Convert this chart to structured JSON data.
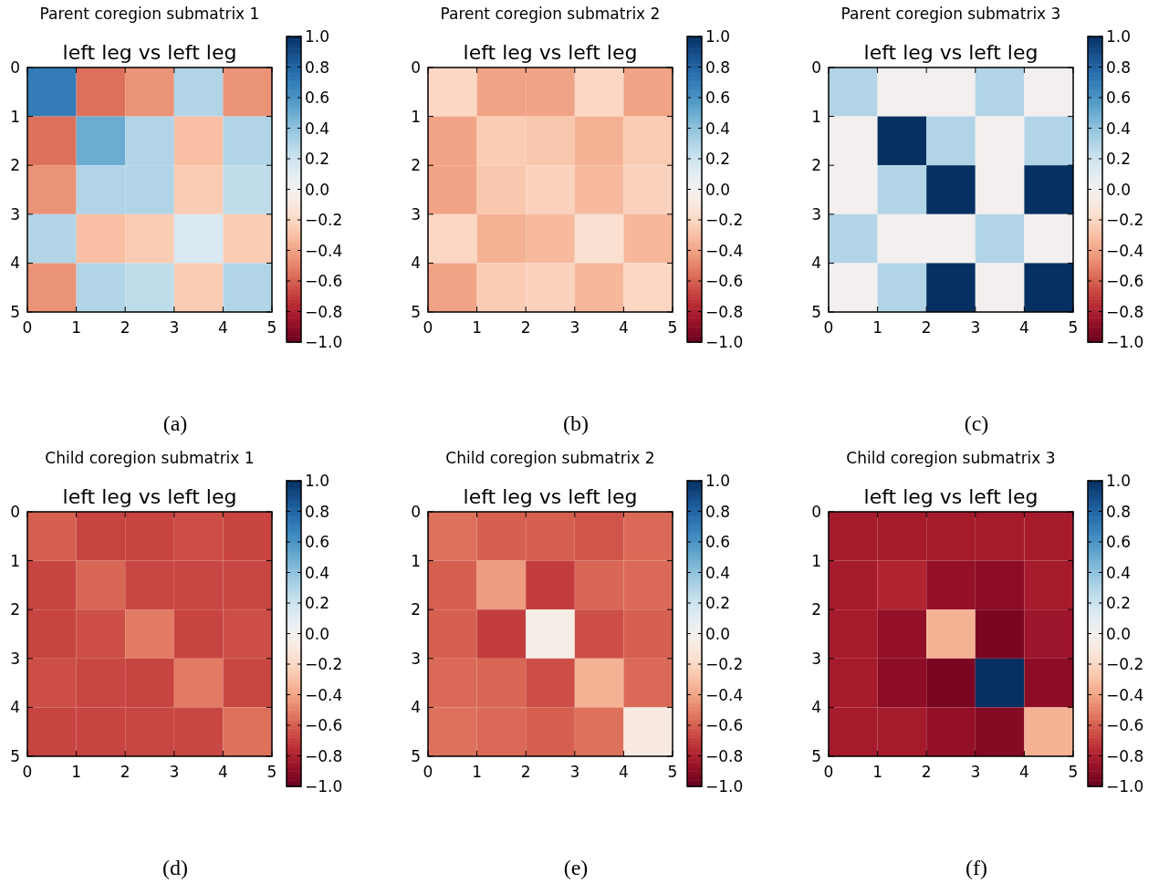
{
  "chart_data": [
    {
      "type": "heatmap",
      "title": "Parent coregion submatrix 1",
      "subtitle": "left leg vs left leg",
      "annotations": [
        "(a)"
      ],
      "xlim": [
        0,
        5
      ],
      "ylim": [
        5,
        0
      ],
      "xticks": [
        0,
        1,
        2,
        3,
        4,
        5
      ],
      "yticks": [
        0,
        1,
        2,
        3,
        4,
        5
      ],
      "clim": [
        -1,
        1
      ],
      "cticks": [
        {
          "value": -1,
          "label": "−1.0"
        },
        {
          "value": -0.8,
          "label": "−0.8"
        },
        {
          "value": -0.6,
          "label": "−0.6"
        },
        {
          "value": -0.4,
          "label": "−0.4"
        },
        {
          "value": -0.2,
          "label": "−0.2"
        },
        {
          "value": 0,
          "label": "0.0"
        },
        {
          "value": 0.2,
          "label": "0.2"
        },
        {
          "value": 0.4,
          "label": "0.4"
        },
        {
          "value": 0.6,
          "label": "0.6"
        },
        {
          "value": 0.8,
          "label": "0.8"
        },
        {
          "value": 1,
          "label": "1.0"
        }
      ],
      "cells": [
        [
          0.7,
          -0.55,
          -0.45,
          0.3,
          -0.45
        ],
        [
          -0.55,
          0.5,
          0.3,
          -0.3,
          0.3
        ],
        [
          -0.45,
          0.3,
          0.3,
          -0.25,
          0.25
        ],
        [
          0.3,
          -0.3,
          -0.25,
          0.15,
          -0.25
        ],
        [
          -0.45,
          0.3,
          0.25,
          -0.25,
          0.3
        ]
      ]
    },
    {
      "type": "heatmap",
      "title": "Parent coregion submatrix 2",
      "subtitle": "left leg vs left leg",
      "annotations": [
        "(b)"
      ],
      "xlim": [
        0,
        5
      ],
      "ylim": [
        5,
        0
      ],
      "xticks": [
        0,
        1,
        2,
        3,
        4,
        5
      ],
      "yticks": [
        0,
        1,
        2,
        3,
        4,
        5
      ],
      "clim": [
        -1,
        1
      ],
      "cticks": [
        {
          "value": -1,
          "label": "−1.0"
        },
        {
          "value": -0.8,
          "label": "−0.8"
        },
        {
          "value": -0.6,
          "label": "−0.6"
        },
        {
          "value": -0.4,
          "label": "−0.4"
        },
        {
          "value": -0.2,
          "label": "−0.2"
        },
        {
          "value": 0,
          "label": "0.0"
        },
        {
          "value": 0.2,
          "label": "0.2"
        },
        {
          "value": 0.4,
          "label": "0.4"
        },
        {
          "value": 0.6,
          "label": "0.6"
        },
        {
          "value": 0.8,
          "label": "0.8"
        },
        {
          "value": 1,
          "label": "1.0"
        }
      ],
      "cells": [
        [
          -0.2,
          -0.4,
          -0.4,
          -0.2,
          -0.4
        ],
        [
          -0.4,
          -0.25,
          -0.27,
          -0.35,
          -0.25
        ],
        [
          -0.4,
          -0.27,
          -0.22,
          -0.32,
          -0.22
        ],
        [
          -0.2,
          -0.35,
          -0.32,
          -0.15,
          -0.33
        ],
        [
          -0.4,
          -0.25,
          -0.22,
          -0.33,
          -0.2
        ]
      ]
    },
    {
      "type": "heatmap",
      "title": "Parent coregion submatrix 3",
      "subtitle": "left leg vs left leg",
      "annotations": [
        "(c)"
      ],
      "xlim": [
        0,
        5
      ],
      "ylim": [
        5,
        0
      ],
      "xticks": [
        0,
        1,
        2,
        3,
        4,
        5
      ],
      "yticks": [
        0,
        1,
        2,
        3,
        4,
        5
      ],
      "clim": [
        -1,
        1
      ],
      "cticks": [
        {
          "value": -1,
          "label": "−1.0"
        },
        {
          "value": -0.8,
          "label": "−0.8"
        },
        {
          "value": -0.6,
          "label": "−0.6"
        },
        {
          "value": -0.4,
          "label": "−0.4"
        },
        {
          "value": -0.2,
          "label": "−0.2"
        },
        {
          "value": 0,
          "label": "0.0"
        },
        {
          "value": 0.2,
          "label": "0.2"
        },
        {
          "value": 0.4,
          "label": "0.4"
        },
        {
          "value": 0.6,
          "label": "0.6"
        },
        {
          "value": 0.8,
          "label": "0.8"
        },
        {
          "value": 1,
          "label": "1.0"
        }
      ],
      "cells": [
        [
          0.3,
          0,
          0,
          0.3,
          0
        ],
        [
          0,
          1,
          0.3,
          0,
          0.3
        ],
        [
          0,
          0.3,
          1,
          0,
          1
        ],
        [
          0.3,
          0,
          0,
          0.3,
          0
        ],
        [
          0,
          0.3,
          1,
          0,
          1
        ]
      ]
    },
    {
      "type": "heatmap",
      "title": "Child coregion submatrix 1",
      "subtitle": "left leg vs left leg",
      "annotations": [
        "(d)"
      ],
      "xlim": [
        0,
        5
      ],
      "ylim": [
        5,
        0
      ],
      "xticks": [
        0,
        1,
        2,
        3,
        4,
        5
      ],
      "yticks": [
        0,
        1,
        2,
        3,
        4,
        5
      ],
      "clim": [
        -1,
        1
      ],
      "cticks": [
        {
          "value": -1,
          "label": "−1.0"
        },
        {
          "value": -0.8,
          "label": "−0.8"
        },
        {
          "value": -0.6,
          "label": "−0.6"
        },
        {
          "value": -0.4,
          "label": "−0.4"
        },
        {
          "value": -0.2,
          "label": "−0.2"
        },
        {
          "value": 0,
          "label": "0.0"
        },
        {
          "value": 0.2,
          "label": "0.2"
        },
        {
          "value": 0.4,
          "label": "0.4"
        },
        {
          "value": 0.6,
          "label": "0.6"
        },
        {
          "value": 0.8,
          "label": "0.8"
        },
        {
          "value": 1,
          "label": "1.0"
        }
      ],
      "cells": [
        [
          -0.6,
          -0.68,
          -0.68,
          -0.65,
          -0.68
        ],
        [
          -0.68,
          -0.58,
          -0.67,
          -0.67,
          -0.67
        ],
        [
          -0.68,
          -0.65,
          -0.52,
          -0.68,
          -0.65
        ],
        [
          -0.65,
          -0.67,
          -0.68,
          -0.52,
          -0.67
        ],
        [
          -0.68,
          -0.68,
          -0.67,
          -0.67,
          -0.55
        ]
      ]
    },
    {
      "type": "heatmap",
      "title": "Child coregion submatrix 2",
      "subtitle": "left leg vs left leg",
      "annotations": [
        "(e)"
      ],
      "xlim": [
        0,
        5
      ],
      "ylim": [
        5,
        0
      ],
      "xticks": [
        0,
        1,
        2,
        3,
        4,
        5
      ],
      "yticks": [
        0,
        1,
        2,
        3,
        4,
        5
      ],
      "clim": [
        -1,
        1
      ],
      "cticks": [
        {
          "value": -1,
          "label": "−1.0"
        },
        {
          "value": -0.8,
          "label": "−0.8"
        },
        {
          "value": -0.6,
          "label": "−0.6"
        },
        {
          "value": -0.4,
          "label": "−0.4"
        },
        {
          "value": -0.2,
          "label": "−0.2"
        },
        {
          "value": 0,
          "label": "0.0"
        },
        {
          "value": 0.2,
          "label": "0.2"
        },
        {
          "value": 0.4,
          "label": "0.4"
        },
        {
          "value": 0.6,
          "label": "0.6"
        },
        {
          "value": 0.8,
          "label": "0.8"
        },
        {
          "value": 1,
          "label": "1.0"
        }
      ],
      "cells": [
        [
          -0.55,
          -0.6,
          -0.6,
          -0.63,
          -0.57
        ],
        [
          -0.6,
          -0.42,
          -0.7,
          -0.58,
          -0.57
        ],
        [
          -0.6,
          -0.7,
          -0.05,
          -0.65,
          -0.6
        ],
        [
          -0.57,
          -0.58,
          -0.65,
          -0.35,
          -0.57
        ],
        [
          -0.55,
          -0.57,
          -0.6,
          -0.55,
          -0.08
        ]
      ]
    },
    {
      "type": "heatmap",
      "title": "Child coregion submatrix 3",
      "subtitle": "left leg vs left leg",
      "annotations": [
        "(f)"
      ],
      "xlim": [
        0,
        5
      ],
      "ylim": [
        5,
        0
      ],
      "xticks": [
        0,
        1,
        2,
        3,
        4,
        5
      ],
      "yticks": [
        0,
        1,
        2,
        3,
        4,
        5
      ],
      "clim": [
        -1,
        1
      ],
      "cticks": [
        {
          "value": -1,
          "label": "−1.0"
        },
        {
          "value": -0.8,
          "label": "−0.8"
        },
        {
          "value": -0.6,
          "label": "−0.6"
        },
        {
          "value": -0.4,
          "label": "−0.4"
        },
        {
          "value": -0.2,
          "label": "−0.2"
        },
        {
          "value": 0,
          "label": "0.0"
        },
        {
          "value": 0.2,
          "label": "0.2"
        },
        {
          "value": 0.4,
          "label": "0.4"
        },
        {
          "value": 0.6,
          "label": "0.6"
        },
        {
          "value": 0.8,
          "label": "0.8"
        },
        {
          "value": 1,
          "label": "1.0"
        }
      ],
      "cells": [
        [
          -0.82,
          -0.82,
          -0.82,
          -0.82,
          -0.82
        ],
        [
          -0.82,
          -0.78,
          -0.88,
          -0.9,
          -0.82
        ],
        [
          -0.82,
          -0.88,
          -0.35,
          -0.95,
          -0.85
        ],
        [
          -0.82,
          -0.9,
          -0.95,
          1.0,
          -0.9
        ],
        [
          -0.82,
          -0.82,
          -0.88,
          -0.92,
          -0.35
        ]
      ]
    }
  ]
}
